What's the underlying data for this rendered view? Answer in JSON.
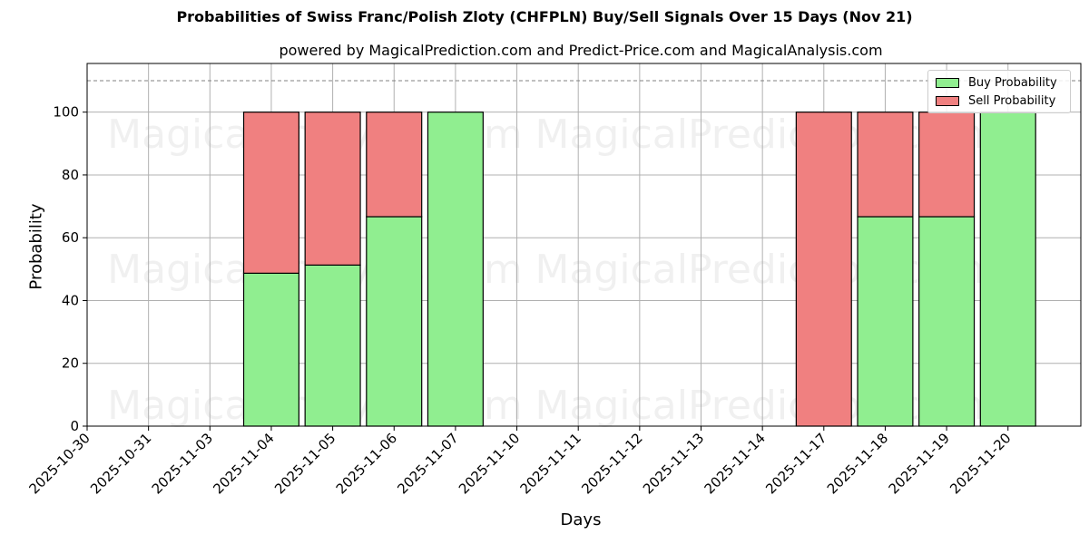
{
  "header": {
    "title": "Probabilities of Swiss Franc/Polish Zloty (CHFPLN) Buy/Sell Signals Over 15 Days (Nov 21)",
    "subtitle": "powered by MagicalPrediction.com and Predict-Price.com and MagicalAnalysis.com"
  },
  "watermarks": [
    "MagicalAnalysis.com",
    "MagicalPrediction.com"
  ],
  "colors": {
    "buy": "#90ee90",
    "sell": "#f08080",
    "grid": "#b0b0b0",
    "reference_line": "#808080"
  },
  "legend": {
    "items": [
      {
        "label": "Buy Probability",
        "color": "#90ee90"
      },
      {
        "label": "Sell Probability",
        "color": "#f08080"
      }
    ]
  },
  "chart_data": {
    "type": "bar",
    "stacked": true,
    "title": "Probabilities of Swiss Franc/Polish Zloty (CHFPLN) Buy/Sell Signals Over 15 Days (Nov 21)",
    "subtitle": "powered by MagicalPrediction.com and Predict-Price.com and MagicalAnalysis.com",
    "xlabel": "Days",
    "ylabel": "Probability",
    "ylim": [
      0,
      115.5
    ],
    "yticks": [
      0,
      20,
      40,
      60,
      80,
      100
    ],
    "grid": true,
    "legend_position": "upper right",
    "reference_line": {
      "y": 110,
      "style": "dashed"
    },
    "categories": [
      "2025-10-30",
      "2025-10-31",
      "2025-11-03",
      "2025-11-04",
      "2025-11-05",
      "2025-11-06",
      "2025-11-07",
      "2025-11-10",
      "2025-11-11",
      "2025-11-12",
      "2025-11-13",
      "2025-11-14",
      "2025-11-17",
      "2025-11-18",
      "2025-11-19",
      "2025-11-20"
    ],
    "series": [
      {
        "name": "Buy Probability",
        "color": "#90ee90",
        "values": [
          null,
          null,
          null,
          48.7,
          51.3,
          66.7,
          100,
          null,
          null,
          null,
          null,
          null,
          0,
          66.7,
          66.7,
          100
        ]
      },
      {
        "name": "Sell Probability",
        "color": "#f08080",
        "values": [
          null,
          null,
          null,
          51.3,
          48.7,
          33.3,
          0,
          null,
          null,
          null,
          null,
          null,
          100,
          33.3,
          33.3,
          0
        ]
      }
    ]
  }
}
